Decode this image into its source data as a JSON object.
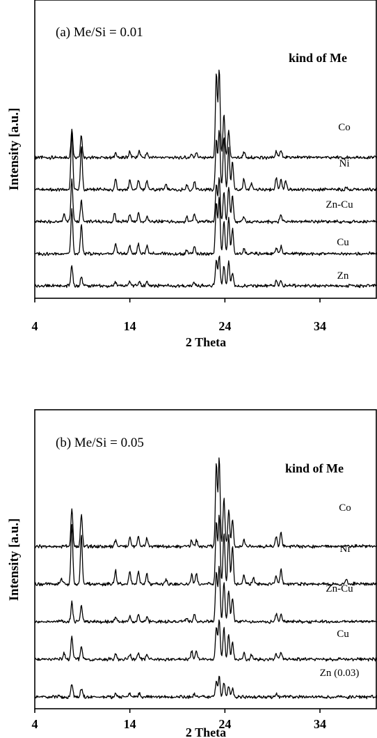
{
  "chart_data": [
    {
      "type": "line",
      "title": "(a) Me/Si = 0.01",
      "xlabel": "2 Theta",
      "ylabel": "Intensity [a.u.]",
      "legend_title": "kind of Me",
      "xlim": [
        4,
        40
      ],
      "xticks": [
        4,
        14,
        24,
        34
      ],
      "xtick_labels": [
        "4",
        "14",
        "24",
        "34"
      ],
      "grid": false,
      "series": [
        {
          "name": "Co",
          "offset": 4.0,
          "peaks": [
            [
              7.9,
              1.7
            ],
            [
              8.9,
              1.4
            ],
            [
              12.5,
              0.3
            ],
            [
              14.0,
              0.35
            ],
            [
              15.0,
              0.4
            ],
            [
              15.8,
              0.3
            ],
            [
              20.5,
              0.25
            ],
            [
              21.0,
              0.3
            ],
            [
              23.1,
              5.0
            ],
            [
              23.4,
              5.3
            ],
            [
              23.9,
              2.6
            ],
            [
              24.4,
              1.6
            ],
            [
              26.0,
              0.35
            ],
            [
              29.4,
              0.4
            ],
            [
              29.9,
              0.5
            ]
          ]
        },
        {
          "name": "Ni",
          "offset": 3.0,
          "peaks": [
            [
              7.9,
              3.4
            ],
            [
              8.9,
              2.6
            ],
            [
              12.5,
              0.7
            ],
            [
              14.0,
              0.55
            ],
            [
              14.9,
              0.6
            ],
            [
              15.8,
              0.5
            ],
            [
              17.8,
              0.3
            ],
            [
              20.0,
              0.3
            ],
            [
              20.8,
              0.45
            ],
            [
              23.1,
              3.0
            ],
            [
              23.4,
              3.6
            ],
            [
              23.9,
              3.2
            ],
            [
              24.4,
              2.5
            ],
            [
              24.8,
              1.7
            ],
            [
              26.0,
              0.6
            ],
            [
              26.8,
              0.4
            ],
            [
              29.4,
              0.7
            ],
            [
              29.9,
              0.6
            ],
            [
              30.4,
              0.5
            ],
            [
              36.8,
              0.15
            ]
          ]
        },
        {
          "name": "Zn-Cu",
          "offset": 2.0,
          "peaks": [
            [
              7.1,
              0.5
            ],
            [
              7.9,
              2.5
            ],
            [
              8.9,
              1.3
            ],
            [
              12.4,
              0.55
            ],
            [
              14.0,
              0.4
            ],
            [
              14.9,
              0.45
            ],
            [
              15.8,
              0.3
            ],
            [
              20.0,
              0.3
            ],
            [
              20.8,
              0.45
            ],
            [
              23.1,
              2.2
            ],
            [
              23.4,
              2.6
            ],
            [
              23.9,
              1.8
            ],
            [
              24.4,
              2.1
            ],
            [
              24.8,
              1.6
            ],
            [
              26.0,
              0.3
            ],
            [
              29.9,
              0.45
            ]
          ]
        },
        {
          "name": "Cu",
          "offset": 1.0,
          "peaks": [
            [
              7.9,
              2.6
            ],
            [
              8.9,
              1.8
            ],
            [
              12.5,
              0.6
            ],
            [
              14.0,
              0.5
            ],
            [
              14.9,
              0.6
            ],
            [
              15.8,
              0.5
            ],
            [
              20.0,
              0.3
            ],
            [
              20.8,
              0.45
            ],
            [
              23.1,
              3.0
            ],
            [
              23.4,
              3.4
            ],
            [
              23.9,
              2.0
            ],
            [
              24.4,
              2.2
            ],
            [
              24.8,
              1.5
            ],
            [
              26.0,
              0.35
            ],
            [
              29.4,
              0.35
            ],
            [
              29.9,
              0.45
            ]
          ]
        },
        {
          "name": "Zn",
          "offset": 0.0,
          "peaks": [
            [
              7.9,
              1.2
            ],
            [
              8.9,
              0.6
            ],
            [
              12.5,
              0.25
            ],
            [
              14.0,
              0.25
            ],
            [
              15.0,
              0.25
            ],
            [
              15.8,
              0.2
            ],
            [
              20.8,
              0.2
            ],
            [
              23.1,
              1.5
            ],
            [
              23.4,
              1.8
            ],
            [
              23.9,
              1.2
            ],
            [
              24.4,
              1.5
            ],
            [
              24.8,
              0.8
            ],
            [
              29.4,
              0.3
            ],
            [
              29.9,
              0.25
            ]
          ]
        }
      ]
    },
    {
      "type": "line",
      "title": "(b) Me/Si = 0.05",
      "xlabel": "2 Theta",
      "ylabel": "Intensity [a.u.]",
      "legend_title": "kind of Me",
      "xlim": [
        4,
        40
      ],
      "xticks": [
        4,
        14,
        24,
        34
      ],
      "xtick_labels": [
        "4",
        "14",
        "24",
        "34"
      ],
      "grid": false,
      "series": [
        {
          "name": "Co",
          "offset": 4.0,
          "peaks": [
            [
              7.9,
              2.3
            ],
            [
              8.9,
              1.9
            ],
            [
              12.5,
              0.35
            ],
            [
              14.0,
              0.5
            ],
            [
              14.9,
              0.6
            ],
            [
              15.8,
              0.5
            ],
            [
              20.5,
              0.35
            ],
            [
              21.0,
              0.4
            ],
            [
              23.1,
              5.0
            ],
            [
              23.4,
              5.3
            ],
            [
              23.9,
              2.9
            ],
            [
              24.4,
              2.2
            ],
            [
              24.8,
              1.6
            ],
            [
              26.0,
              0.4
            ],
            [
              29.4,
              0.6
            ],
            [
              29.9,
              0.8
            ]
          ]
        },
        {
          "name": "Ni",
          "offset": 3.0,
          "peaks": [
            [
              6.8,
              0.3
            ],
            [
              7.9,
              3.6
            ],
            [
              8.9,
              2.9
            ],
            [
              12.5,
              0.8
            ],
            [
              14.0,
              0.7
            ],
            [
              14.9,
              0.75
            ],
            [
              15.8,
              0.6
            ],
            [
              17.8,
              0.3
            ],
            [
              20.5,
              0.55
            ],
            [
              21.0,
              0.6
            ],
            [
              23.1,
              3.7
            ],
            [
              23.4,
              4.1
            ],
            [
              23.9,
              3.1
            ],
            [
              24.4,
              2.9
            ],
            [
              24.8,
              2.3
            ],
            [
              26.0,
              0.5
            ],
            [
              27.0,
              0.4
            ],
            [
              29.4,
              0.5
            ],
            [
              29.9,
              0.9
            ],
            [
              36.8,
              0.3
            ]
          ]
        },
        {
          "name": "Zn-Cu",
          "offset": 2.0,
          "peaks": [
            [
              7.9,
              1.2
            ],
            [
              8.9,
              1.0
            ],
            [
              12.5,
              0.3
            ],
            [
              14.0,
              0.3
            ],
            [
              14.9,
              0.4
            ],
            [
              15.8,
              0.3
            ],
            [
              20.0,
              0.25
            ],
            [
              20.8,
              0.4
            ],
            [
              23.1,
              3.0
            ],
            [
              23.4,
              3.3
            ],
            [
              23.9,
              2.4
            ],
            [
              24.4,
              1.9
            ],
            [
              24.8,
              1.5
            ],
            [
              29.4,
              0.45
            ],
            [
              29.9,
              0.4
            ]
          ]
        },
        {
          "name": "Cu",
          "offset": 1.0,
          "peaks": [
            [
              7.1,
              0.4
            ],
            [
              7.9,
              1.4
            ],
            [
              8.9,
              0.8
            ],
            [
              12.5,
              0.3
            ],
            [
              14.0,
              0.3
            ],
            [
              14.9,
              0.35
            ],
            [
              15.8,
              0.3
            ],
            [
              20.5,
              0.5
            ],
            [
              21.0,
              0.55
            ],
            [
              23.1,
              1.9
            ],
            [
              23.4,
              2.4
            ],
            [
              23.9,
              1.9
            ],
            [
              24.4,
              1.5
            ],
            [
              24.8,
              1.1
            ],
            [
              26.0,
              0.35
            ],
            [
              26.8,
              0.3
            ],
            [
              29.4,
              0.35
            ],
            [
              29.9,
              0.45
            ]
          ]
        },
        {
          "name": "Zn (0.03)",
          "offset": 0.0,
          "peaks": [
            [
              7.9,
              0.8
            ],
            [
              8.9,
              0.5
            ],
            [
              12.5,
              0.15
            ],
            [
              14.0,
              0.2
            ],
            [
              15.0,
              0.2
            ],
            [
              20.8,
              0.2
            ],
            [
              23.1,
              0.9
            ],
            [
              23.4,
              1.2
            ],
            [
              23.9,
              0.9
            ],
            [
              24.4,
              0.7
            ],
            [
              24.8,
              0.5
            ],
            [
              29.4,
              0.2
            ]
          ]
        }
      ]
    }
  ],
  "colors": {
    "line": "#000000",
    "background": "#ffffff"
  }
}
